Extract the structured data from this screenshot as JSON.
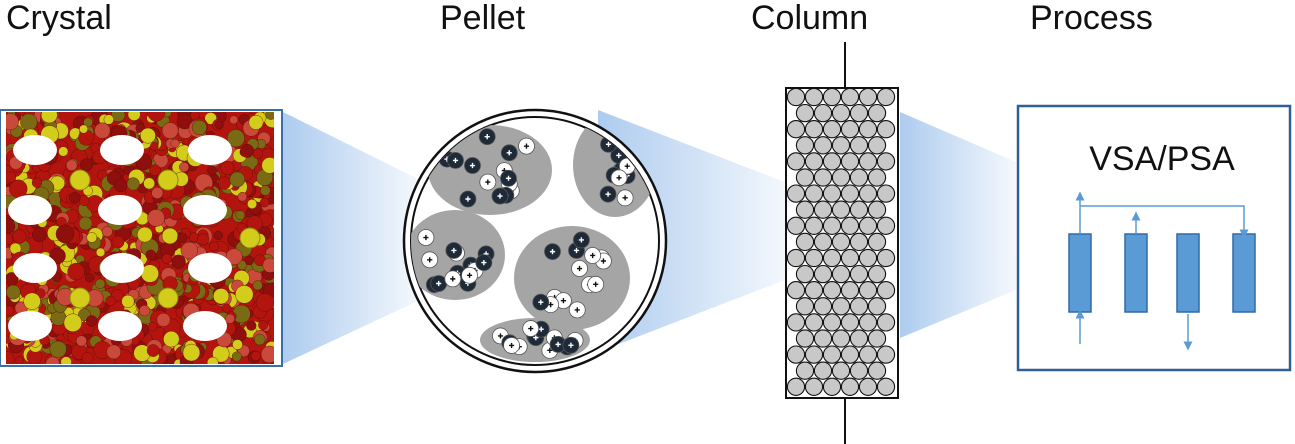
{
  "titles": {
    "crystal": "Crystal",
    "pellet": "Pellet",
    "column": "Column",
    "process": "Process"
  },
  "process": {
    "label": "VSA/PSA",
    "vessel_count": 4
  },
  "colors": {
    "frame_blue": "#3a6fa6",
    "beam_blue": "#a9c9ee",
    "vessel_fill": "#5b9bd5",
    "vessel_stroke": "#2e6aa8",
    "arrow_blue": "#5b9bd5",
    "crystal_red": "#b3140e",
    "crystal_yellow": "#d4cc1a",
    "crystal_olive": "#7a6a14",
    "pellet_gray": "#a5a5a5",
    "crystallite_dark": "#1e2a38",
    "bead_gray": "#c8c8c8"
  },
  "icons": {
    "crystal": "zeolite-lattice-image",
    "pellet": "pellet-cross-section",
    "column": "packed-bed-column",
    "process": "adsorption-process-diagram"
  }
}
